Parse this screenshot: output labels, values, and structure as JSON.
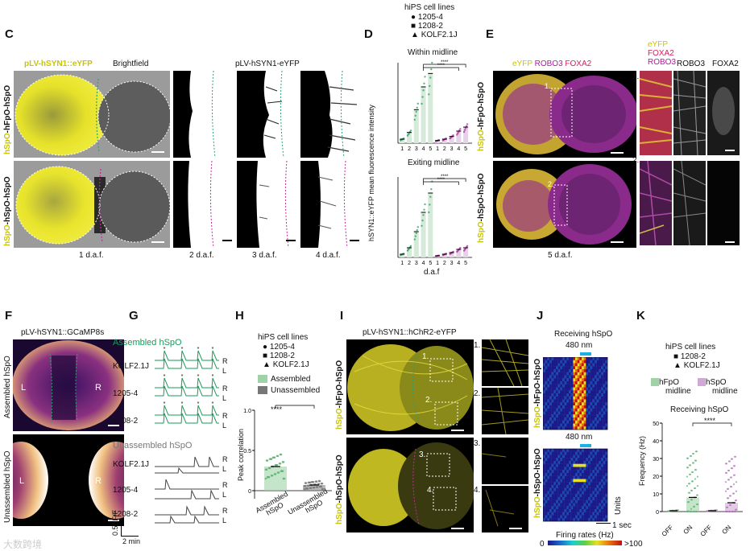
{
  "panels": {
    "C": {
      "letter": "C",
      "label_eyfp": "pLV-hSYN1::eYFP",
      "label_bf": "Brightfield",
      "label_eyfp2": "pLV-hSYN1-eYFP",
      "row1_a": "hSpO",
      "row1_b": "-hFpO-hSpO",
      "row2_a": "hSpO",
      "row2_b": "-hSpO-hSpO",
      "days": [
        "1 d.a.f.",
        "2 d.a.f.",
        "3 d.a.f.",
        "4 d.a.f."
      ]
    },
    "D": {
      "letter": "D",
      "legend_title": "hiPS cell lines",
      "legend_items": [
        "1205-4",
        "1208-2",
        "KOLF2.1J"
      ],
      "sub1": "Within midline",
      "sub2": "Exiting midline",
      "ylabel": "hSYN1::eYFP mean fluorescence intensity",
      "xlabel": "d.a.f",
      "sig": "****"
    },
    "E": {
      "letter": "E",
      "label_a": "eYFP",
      "label_b": "ROBO3",
      "label_c": "FOXA2",
      "row1_a": "hSpO",
      "row1_b": "-hFpO-hSpO",
      "row2_a": "hSpO",
      "row2_b": "-hSpO-hSpO",
      "day": "5 d.a.f.",
      "zoom_head_a": "eYFP",
      "zoom_head_b": "FOXA2",
      "zoom_head_c": "ROBO3",
      "zoom_col2": "ROBO3",
      "zoom_col3": "FOXA2",
      "zoom1": "1.",
      "zoom2": "2."
    },
    "F": {
      "letter": "F",
      "title": "pLV-hSYN1::GCaMP8s",
      "row1": "Assembled hSpO",
      "row2": "Unassembled hSpO",
      "L": "L",
      "R": "R"
    },
    "G": {
      "letter": "G",
      "title1": "Assembled hSpO",
      "title2": "Unassembled hSpO",
      "lines": [
        "KOLF2.1J",
        "1205-4",
        "1208-2"
      ],
      "R": "R",
      "L": "L",
      "scale_y": "0.5ΔF/F",
      "scale_x": "2 min"
    },
    "H": {
      "letter": "H",
      "legend_title": "hiPS cell lines",
      "legend_items": [
        "1205-4",
        "1208-2",
        "KOLF2.1J"
      ],
      "cat1": "Assembled",
      "cat2": "Unassembled",
      "ylabel": "Peak correlation",
      "yticks": [
        "0",
        "0.5",
        "1.0"
      ],
      "xt1a": "Assembled",
      "xt1b": "hSpO",
      "xt2a": "Unassembled",
      "xt2b": "hSpO",
      "sig": "****"
    },
    "I": {
      "letter": "I",
      "title": "pLV-hSYN1::hChR2-eYFP",
      "row1_a": "hSpO",
      "row1_b": "-hFpO-hSpO",
      "row2_a": "hSpO",
      "row2_b": "-hSpO-hSpO",
      "z1": "1.",
      "z2": "2.",
      "z3": "3.",
      "z4": "4."
    },
    "J": {
      "letter": "J",
      "title": "Receiving hSpO",
      "nm": "480 nm",
      "row1_a": "hSpO",
      "row1_b": "-hFpO-hSpO",
      "row2_a": "hSpO",
      "row2_b": "-hSpO-hSpO",
      "scale": "1 sec",
      "units": "Units",
      "cb_title": "Firing rates (Hz)",
      "cb_min": "0",
      "cb_max": ">100"
    },
    "K": {
      "letter": "K",
      "legend_title": "hiPS cell lines",
      "legend_items": [
        "1208-2",
        "KOLF2.1J"
      ],
      "cat1a": "hFpO",
      "cat1b": "midline",
      "cat2a": "hSpO",
      "cat2b": "midline",
      "title": "Receiving hSpO",
      "ylabel": "Frequency (Hz)",
      "yticks": [
        "0",
        "10",
        "20",
        "30",
        "40",
        "50"
      ],
      "xticks": [
        "OFF",
        "ON",
        "OFF",
        "ON"
      ],
      "sig": "****"
    }
  },
  "watermark": "大数跨境",
  "chart_data": [
    {
      "type": "scatter",
      "title": "Within midline",
      "xlabel": "d.a.f",
      "ylabel": "hSYN1::eYFP mean fluorescence intensity",
      "categories": [
        "1",
        "2",
        "3",
        "4",
        "5",
        "1",
        "2",
        "3",
        "4",
        "5"
      ],
      "series": [
        {
          "name": "hFpO midline",
          "values": [
            3,
            8,
            25,
            42,
            52
          ]
        },
        {
          "name": "hSpO midline",
          "values": [
            2,
            3,
            5,
            9,
            12
          ]
        }
      ]
    },
    {
      "type": "scatter",
      "title": "Exiting midline",
      "xlabel": "d.a.f",
      "categories": [
        "1",
        "2",
        "3",
        "4",
        "5",
        "1",
        "2",
        "3",
        "4",
        "5"
      ],
      "series": [
        {
          "name": "hFpO midline",
          "values": [
            1,
            3,
            8,
            14,
            20
          ]
        },
        {
          "name": "hSpO midline",
          "values": [
            0.5,
            1,
            1.5,
            2.5,
            3
          ]
        }
      ]
    },
    {
      "type": "bar",
      "title": "Peak correlation",
      "categories": [
        "Assembled hSpO",
        "Unassembled hSpO"
      ],
      "values": [
        0.3,
        0.07
      ],
      "ylim": [
        -0.1,
        1.0
      ]
    },
    {
      "type": "bar",
      "title": "Receiving hSpO",
      "ylabel": "Frequency (Hz)",
      "categories": [
        "OFF",
        "ON",
        "OFF",
        "ON"
      ],
      "values": [
        0.5,
        8,
        0.5,
        5
      ],
      "ylim": [
        0,
        50
      ]
    }
  ],
  "colors": {
    "yellow": "#e0dd1f",
    "green": "#1a9a5a",
    "magenta": "#b01aa0",
    "lightgreen": "#9fd3a7",
    "lightpurple": "#d0a9d6"
  }
}
